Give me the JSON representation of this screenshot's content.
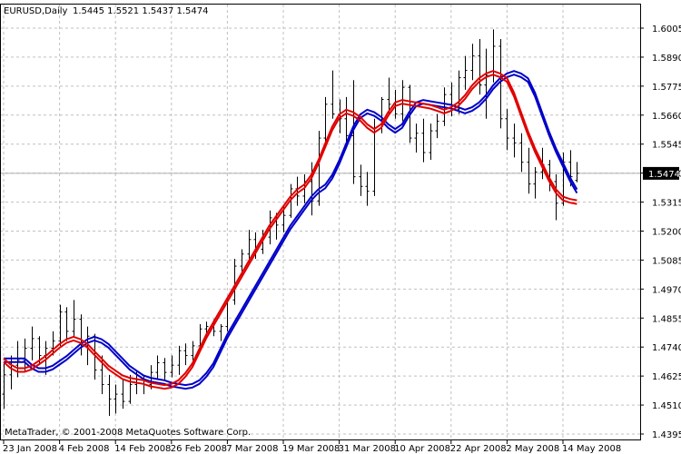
{
  "header": {
    "symbol": "EURUSD,Daily",
    "ohlc": "1.5445 1.5521 1.5437 1.5474"
  },
  "footer": {
    "copyright": "MetaTrader, © 2001-2008 MetaQuotes Software Corp."
  },
  "colors": {
    "background": "#ffffff",
    "grid": "#c0c0c0",
    "bars": "#000000",
    "fast_ma": "#e00000",
    "slow_ma": "#0000c8",
    "current_price_bg": "#000000"
  },
  "chart_data": {
    "type": "ohlc",
    "grid": true,
    "price_axis_side": "right",
    "ylim": [
      1.4395,
      1.6075
    ],
    "y_ticks": [
      "1.6005",
      "1.5890",
      "1.5775",
      "1.5660",
      "1.5545",
      "1.5430",
      "1.5315",
      "1.5200",
      "1.5085",
      "1.4970",
      "1.4855",
      "1.4740",
      "1.4625",
      "1.4510",
      "1.4395"
    ],
    "x_ticks": [
      "23 Jan 2008",
      "4 Feb 2008",
      "14 Feb 2008",
      "26 Feb 2008",
      "7 Mar 2008",
      "19 Mar 2008",
      "31 Mar 2008",
      "10 Apr 2008",
      "22 Apr 2008",
      "2 May 2008",
      "14 May 2008"
    ],
    "current_price": "1.5474",
    "current_price_value": 1.5474,
    "bars_count": 83,
    "bars": [
      [
        1.456,
        1.469,
        1.45,
        1.464
      ],
      [
        1.464,
        1.472,
        1.458,
        1.468
      ],
      [
        1.468,
        1.478,
        1.463,
        1.47
      ],
      [
        1.47,
        1.479,
        1.465,
        1.475
      ],
      [
        1.475,
        1.484,
        1.47,
        1.479
      ],
      [
        1.479,
        1.48,
        1.468,
        1.472
      ],
      [
        1.472,
        1.478,
        1.464,
        1.475
      ],
      [
        1.475,
        1.482,
        1.472,
        1.478
      ],
      [
        1.478,
        1.493,
        1.476,
        1.49
      ],
      [
        1.49,
        1.492,
        1.478,
        1.482
      ],
      [
        1.482,
        1.495,
        1.48,
        1.487
      ],
      [
        1.487,
        1.489,
        1.472,
        1.476
      ],
      [
        1.476,
        1.484,
        1.468,
        1.48
      ],
      [
        1.48,
        1.481,
        1.462,
        1.466
      ],
      [
        1.466,
        1.472,
        1.456,
        1.46
      ],
      [
        1.46,
        1.464,
        1.447,
        1.454
      ],
      [
        1.454,
        1.46,
        1.448,
        1.456
      ],
      [
        1.456,
        1.462,
        1.45,
        1.453
      ],
      [
        1.453,
        1.464,
        1.452,
        1.46
      ],
      [
        1.46,
        1.466,
        1.456,
        1.462
      ],
      [
        1.462,
        1.464,
        1.456,
        1.46
      ],
      [
        1.46,
        1.468,
        1.458,
        1.465
      ],
      [
        1.465,
        1.472,
        1.462,
        1.469
      ],
      [
        1.469,
        1.471,
        1.462,
        1.465
      ],
      [
        1.465,
        1.472,
        1.463,
        1.468
      ],
      [
        1.468,
        1.476,
        1.464,
        1.474
      ],
      [
        1.474,
        1.477,
        1.468,
        1.472
      ],
      [
        1.472,
        1.478,
        1.47,
        1.476
      ],
      [
        1.476,
        1.485,
        1.474,
        1.483
      ],
      [
        1.483,
        1.486,
        1.479,
        1.484
      ],
      [
        1.484,
        1.487,
        1.48,
        1.482
      ],
      [
        1.482,
        1.485,
        1.478,
        1.484
      ],
      [
        1.484,
        1.496,
        1.482,
        1.495
      ],
      [
        1.495,
        1.512,
        1.493,
        1.509
      ],
      [
        1.509,
        1.516,
        1.505,
        1.514
      ],
      [
        1.514,
        1.524,
        1.51,
        1.52
      ],
      [
        1.52,
        1.523,
        1.512,
        1.516
      ],
      [
        1.516,
        1.524,
        1.514,
        1.521
      ],
      [
        1.521,
        1.532,
        1.518,
        1.529
      ],
      [
        1.529,
        1.531,
        1.52,
        1.526
      ],
      [
        1.526,
        1.534,
        1.523,
        1.53
      ],
      [
        1.53,
        1.543,
        1.529,
        1.541
      ],
      [
        1.541,
        1.546,
        1.534,
        1.538
      ],
      [
        1.538,
        1.547,
        1.535,
        1.544
      ],
      [
        1.544,
        1.552,
        1.53,
        1.536
      ],
      [
        1.536,
        1.565,
        1.534,
        1.562
      ],
      [
        1.562,
        1.579,
        1.56,
        1.576
      ],
      [
        1.576,
        1.59,
        1.57,
        1.572
      ],
      [
        1.572,
        1.578,
        1.564,
        1.57
      ],
      [
        1.57,
        1.579,
        1.56,
        1.563
      ],
      [
        1.563,
        1.586,
        1.543,
        1.546
      ],
      [
        1.546,
        1.551,
        1.538,
        1.542
      ],
      [
        1.542,
        1.548,
        1.534,
        1.54
      ],
      [
        1.54,
        1.57,
        1.538,
        1.566
      ],
      [
        1.566,
        1.579,
        1.564,
        1.578
      ],
      [
        1.578,
        1.587,
        1.572,
        1.576
      ],
      [
        1.576,
        1.582,
        1.57,
        1.572
      ],
      [
        1.572,
        1.586,
        1.569,
        1.583
      ],
      [
        1.583,
        1.584,
        1.56,
        1.562
      ],
      [
        1.562,
        1.568,
        1.556,
        1.564
      ],
      [
        1.564,
        1.57,
        1.552,
        1.556
      ],
      [
        1.556,
        1.568,
        1.553,
        1.565
      ],
      [
        1.565,
        1.572,
        1.562,
        1.569
      ],
      [
        1.569,
        1.583,
        1.567,
        1.58
      ],
      [
        1.58,
        1.585,
        1.571,
        1.574
      ],
      [
        1.574,
        1.59,
        1.572,
        1.587
      ],
      [
        1.587,
        1.596,
        1.582,
        1.59
      ],
      [
        1.59,
        1.601,
        1.586,
        1.596
      ],
      [
        1.596,
        1.603,
        1.58,
        1.584
      ],
      [
        1.584,
        1.599,
        1.57,
        1.588
      ],
      [
        1.588,
        1.607,
        1.585,
        1.6
      ],
      [
        1.6,
        1.603,
        1.566,
        1.57
      ],
      [
        1.57,
        1.574,
        1.557,
        1.562
      ],
      [
        1.562,
        1.568,
        1.554,
        1.56
      ],
      [
        1.56,
        1.564,
        1.548,
        1.552
      ],
      [
        1.552,
        1.558,
        1.539,
        1.543
      ],
      [
        1.543,
        1.55,
        1.537,
        1.548
      ],
      [
        1.548,
        1.558,
        1.545,
        1.551
      ],
      [
        1.551,
        1.553,
        1.54,
        1.544
      ],
      [
        1.544,
        1.547,
        1.528,
        1.535
      ],
      [
        1.535,
        1.556,
        1.534,
        1.552
      ],
      [
        1.552,
        1.557,
        1.542,
        1.546
      ],
      [
        1.5445,
        1.5521,
        1.5437,
        1.5474
      ]
    ],
    "ma_fast": [
      1.47,
      1.4675,
      1.466,
      1.466,
      1.467,
      1.469,
      1.471,
      1.4735,
      1.476,
      1.478,
      1.479,
      1.478,
      1.476,
      1.473,
      1.47,
      1.467,
      1.465,
      1.463,
      1.462,
      1.4615,
      1.461,
      1.46,
      1.4595,
      1.459,
      1.4595,
      1.461,
      1.464,
      1.468,
      1.474,
      1.48,
      1.485,
      1.49,
      1.495,
      1.5,
      1.505,
      1.51,
      1.515,
      1.52,
      1.525,
      1.529,
      1.533,
      1.537,
      1.54,
      1.542,
      1.546,
      1.552,
      1.559,
      1.566,
      1.571,
      1.573,
      1.572,
      1.57,
      1.567,
      1.565,
      1.567,
      1.572,
      1.576,
      1.577,
      1.5765,
      1.576,
      1.5755,
      1.575,
      1.574,
      1.573,
      1.574,
      1.576,
      1.579,
      1.583,
      1.586,
      1.588,
      1.589,
      1.588,
      1.586,
      1.58,
      1.572,
      1.564,
      1.557,
      1.551,
      1.545,
      1.54,
      1.537,
      1.536,
      1.5355
    ]
  }
}
